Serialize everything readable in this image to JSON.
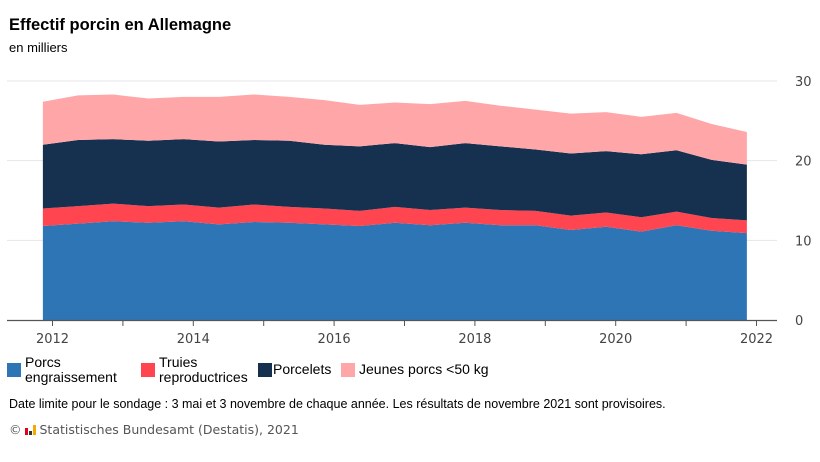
{
  "chart_data": {
    "type": "area",
    "stacked": true,
    "title": "Effectif porcin en Allemagne",
    "subtitle": "en milliers",
    "x": [
      "2011-11",
      "2012-05",
      "2012-11",
      "2013-05",
      "2013-11",
      "2014-05",
      "2014-11",
      "2015-05",
      "2015-11",
      "2016-05",
      "2016-11",
      "2017-05",
      "2017-11",
      "2018-05",
      "2018-11",
      "2019-05",
      "2019-11",
      "2020-05",
      "2020-11",
      "2021-05",
      "2021-11"
    ],
    "xticks": [
      "2012",
      "2014",
      "2016",
      "2018",
      "2020",
      "2022"
    ],
    "yticks": [
      "0",
      "10",
      "20",
      "30"
    ],
    "ylim": [
      0,
      30
    ],
    "grid": true,
    "y_axis_side": "right",
    "legend_placement": "bottom-left",
    "series": [
      {
        "name": "Porcs engraissement",
        "color": "#2e75b6",
        "values": [
          11.8,
          12.1,
          12.4,
          12.2,
          12.4,
          12.0,
          12.3,
          12.2,
          12.0,
          11.8,
          12.2,
          11.9,
          12.2,
          11.9,
          11.9,
          11.3,
          11.7,
          11.1,
          11.9,
          11.2,
          10.9
        ]
      },
      {
        "name": "Truies reproductrices",
        "color": "#ff4550",
        "values": [
          2.2,
          2.2,
          2.2,
          2.1,
          2.1,
          2.1,
          2.2,
          2.0,
          2.0,
          1.9,
          2.0,
          1.9,
          1.9,
          1.9,
          1.8,
          1.8,
          1.8,
          1.8,
          1.7,
          1.6,
          1.6
        ]
      },
      {
        "name": "Porcelets",
        "color": "#16304f",
        "values": [
          8.0,
          8.3,
          8.1,
          8.2,
          8.2,
          8.3,
          8.1,
          8.3,
          8.0,
          8.1,
          8.0,
          7.9,
          8.1,
          8.0,
          7.7,
          7.8,
          7.7,
          7.9,
          7.7,
          7.3,
          7.0
        ]
      },
      {
        "name": "Jeunes porcs <50 kg",
        "color": "#ffa6a9",
        "values": [
          5.4,
          5.6,
          5.6,
          5.3,
          5.3,
          5.6,
          5.7,
          5.5,
          5.6,
          5.2,
          5.1,
          5.4,
          5.3,
          5.1,
          5.0,
          5.0,
          4.9,
          4.7,
          4.7,
          4.5,
          4.1
        ]
      }
    ]
  },
  "legend": {
    "items": [
      {
        "line1": "Porcs",
        "line2": "engraissement"
      },
      {
        "line1": "Truies",
        "line2": "reproductrices"
      },
      {
        "line1": "Porcelets",
        "line2": ""
      },
      {
        "line1": "Jeunes porcs <50 kg",
        "line2": ""
      }
    ]
  },
  "note": "Date limite pour le sondage : 3 mai et 3 novembre de chaque année. Les résultats de novembre 2021 sont provisoires.",
  "credit": "Statistisches Bundesamt (Destatis), 2021",
  "credit_symbol": "©"
}
